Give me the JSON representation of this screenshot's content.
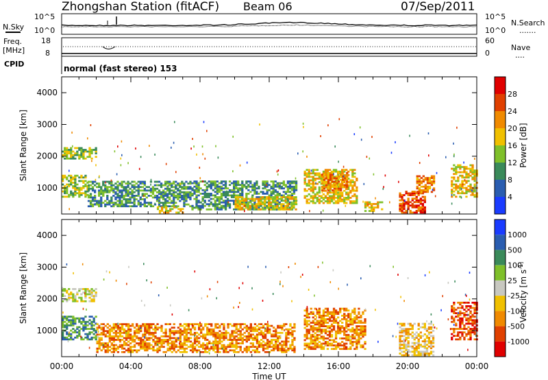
{
  "header": {
    "title": "Zhongshan Station (fitACF)",
    "beam": "Beam 06",
    "date": "07/Sep/2011"
  },
  "summary": {
    "n_sky_label": "N.Sky",
    "n_search_label": "N.Search",
    "freq_label": "Freq.",
    "freq_unit": "[MHz]",
    "nave_label": "Nave",
    "cpid_label": "CPID",
    "cpid_text": "normal (fast stereo) 153",
    "noise_ticks_left": [
      "10^5",
      "10^0"
    ],
    "noise_ticks_right": [
      "10^5",
      "10^0"
    ],
    "freq_ticks": [
      "18",
      "8"
    ],
    "nave_ticks": [
      "60",
      "0"
    ],
    "legend_dots": ".......",
    "nave_dots": "...."
  },
  "chart_data": [
    {
      "type": "heatmap",
      "panel": "power",
      "ylabel": "Slant Range [km]",
      "ylim": [
        180,
        4500
      ],
      "yticks": [
        "1000",
        "2000",
        "3000",
        "4000"
      ],
      "colorbar_label": "Power [dB]",
      "colorbar_ticks": [
        "4",
        "8",
        "12",
        "16",
        "20",
        "24",
        "28"
      ],
      "colorbar_colors": [
        "#1a3cff",
        "#2a5db0",
        "#3a8a5a",
        "#7fc02a",
        "#f0c000",
        "#f08a00",
        "#e04000",
        "#e00000"
      ],
      "echo_regions": [
        {
          "t0": 0.0,
          "t1": 2.0,
          "r0": 1900,
          "r1": 2250,
          "level": 3
        },
        {
          "t0": 0.0,
          "t1": 1.5,
          "r0": 700,
          "r1": 1400,
          "level": 3
        },
        {
          "t0": 1.5,
          "t1": 7.5,
          "r0": 400,
          "r1": 1200,
          "level": 2
        },
        {
          "t0": 5.5,
          "t1": 7.0,
          "r0": 200,
          "r1": 420,
          "level": 4
        },
        {
          "t0": 7.5,
          "t1": 13.5,
          "r0": 300,
          "r1": 1200,
          "level": 2
        },
        {
          "t0": 10.0,
          "t1": 13.5,
          "r0": 300,
          "r1": 700,
          "level": 4
        },
        {
          "t0": 14.0,
          "t1": 17.0,
          "r0": 500,
          "r1": 1600,
          "level": 4
        },
        {
          "t0": 15.0,
          "t1": 16.5,
          "r0": 900,
          "r1": 1500,
          "level": 5
        },
        {
          "t0": 17.5,
          "t1": 18.5,
          "r0": 250,
          "r1": 550,
          "level": 4
        },
        {
          "t0": 19.5,
          "t1": 21.0,
          "r0": 200,
          "r1": 900,
          "level": 6
        },
        {
          "t0": 20.5,
          "t1": 21.5,
          "r0": 850,
          "r1": 1400,
          "level": 5
        },
        {
          "t0": 22.5,
          "t1": 24.0,
          "r0": 700,
          "r1": 1700,
          "level": 4
        }
      ]
    },
    {
      "type": "heatmap",
      "panel": "velocity",
      "ylabel": "Slant Range [km]",
      "ylim": [
        180,
        4500
      ],
      "yticks": [
        "1000",
        "2000",
        "3000",
        "4000"
      ],
      "xticks": [
        "00:00",
        "04:00",
        "08:00",
        "12:00",
        "16:00",
        "20:00",
        "00:00"
      ],
      "xlabel": "Time UT",
      "colorbar_label": "Velocity [m s^-1]",
      "colorbar_ticks": [
        "1000",
        "500",
        "100",
        "25",
        "-25",
        "-100",
        "-500",
        "-1000"
      ],
      "colorbar_colors": [
        "#1a3cff",
        "#2a5db0",
        "#3a8a5a",
        "#7fc02a",
        "#c8c8c0",
        "#f0c000",
        "#f08a00",
        "#e04000",
        "#e00000"
      ],
      "echo_regions": [
        {
          "t0": 0.0,
          "t1": 2.0,
          "r0": 1900,
          "r1": 2300,
          "level": 4
        },
        {
          "t0": 0.0,
          "t1": 2.0,
          "r0": 700,
          "r1": 1450,
          "level": 2
        },
        {
          "t0": 2.0,
          "t1": 8.0,
          "r0": 300,
          "r1": 1200,
          "level": 6
        },
        {
          "t0": 8.0,
          "t1": 13.5,
          "r0": 300,
          "r1": 1200,
          "level": 6
        },
        {
          "t0": 14.0,
          "t1": 17.5,
          "r0": 400,
          "r1": 1700,
          "level": 6
        },
        {
          "t0": 19.5,
          "t1": 21.5,
          "r0": 200,
          "r1": 1200,
          "level": 5
        },
        {
          "t0": 22.5,
          "t1": 24.0,
          "r0": 700,
          "r1": 1900,
          "level": 7
        }
      ]
    }
  ]
}
